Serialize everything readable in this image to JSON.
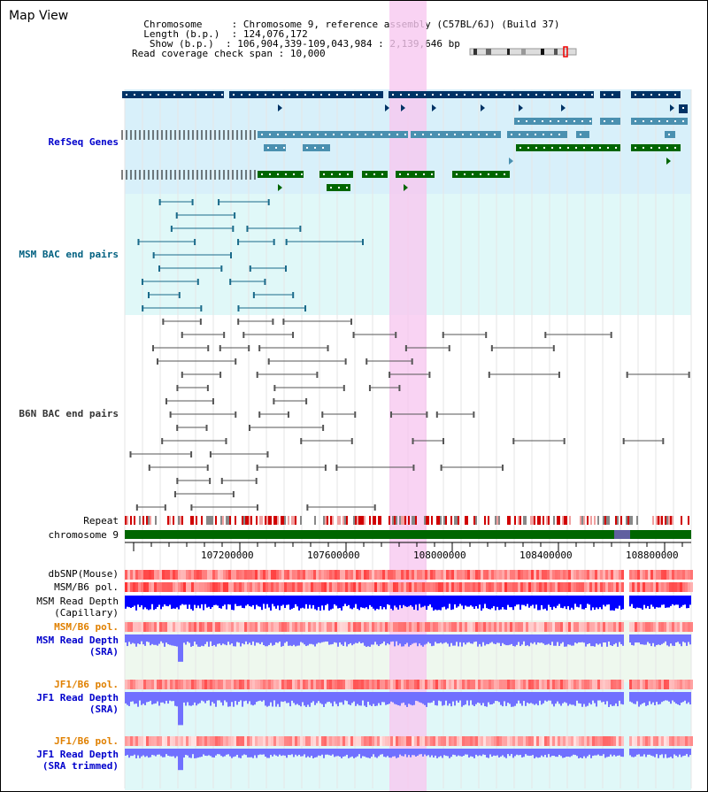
{
  "header": {
    "title": "Map View",
    "info_lines": [
      {
        "key": "Chromosome",
        "value": "Chromosome 9, reference assembly (C57BL/6J) (Build 37)"
      },
      {
        "key": "Length (b.p.)",
        "value": "124,076,172"
      },
      {
        "key": "Show (b.p.)",
        "value": "106,904,339-109,043,984 : 2,139,646 bp"
      },
      {
        "key": "Read coverage check span",
        "value": "10,000"
      }
    ]
  },
  "tracks": {
    "refseq": {
      "label": "RefSeq Genes",
      "color": "#0000cc"
    },
    "msm_bac": {
      "label": "MSM BAC end pairs",
      "color": "#006080"
    },
    "b6n_bac": {
      "label": "B6N BAC end pairs",
      "color": "#333333"
    },
    "repeat": {
      "label": "Repeat"
    },
    "chromosome": {
      "label": "chromosome 9"
    },
    "dbsnp": {
      "label": "dbSNP(Mouse)"
    },
    "msm_b6_pol": {
      "label": "MSM/B6 pol."
    },
    "msm_depth_cap": {
      "label": "MSM Read Depth\n(Capillary)"
    },
    "msm_b6_pol2": {
      "label": "MSM/B6 pol.",
      "color": "#e08000"
    },
    "msm_depth_sra": {
      "label": "MSM Read Depth\n(SRA)",
      "color": "#0000cc"
    },
    "jf1_b6_pol": {
      "label": "JF1/B6 pol.",
      "color": "#e08000"
    },
    "jf1_depth_sra": {
      "label": "JF1 Read Depth\n(SRA)",
      "color": "#0000cc"
    },
    "jf1_b6_pol2": {
      "label": "JF1/B6 pol.",
      "color": "#e08000"
    },
    "jf1_depth_trim": {
      "label": "JF1 Read Depth\n(SRA trimmed)",
      "color": "#0000cc"
    }
  },
  "axis": {
    "ticks": [
      "107200000",
      "107600000",
      "108000000",
      "108400000",
      "108800000"
    ]
  },
  "colors": {
    "highlight": "#f8c8f0",
    "refseq_bg": "#d8f0fa",
    "bac_bg": "#e0f8f8",
    "gene_dark": "#003366",
    "gene_mid": "#4a90b0",
    "gene_green": "#006600",
    "depth_blue": "#0000ff",
    "depth_light": "#7070ff",
    "pol_red": "#ff0000"
  }
}
